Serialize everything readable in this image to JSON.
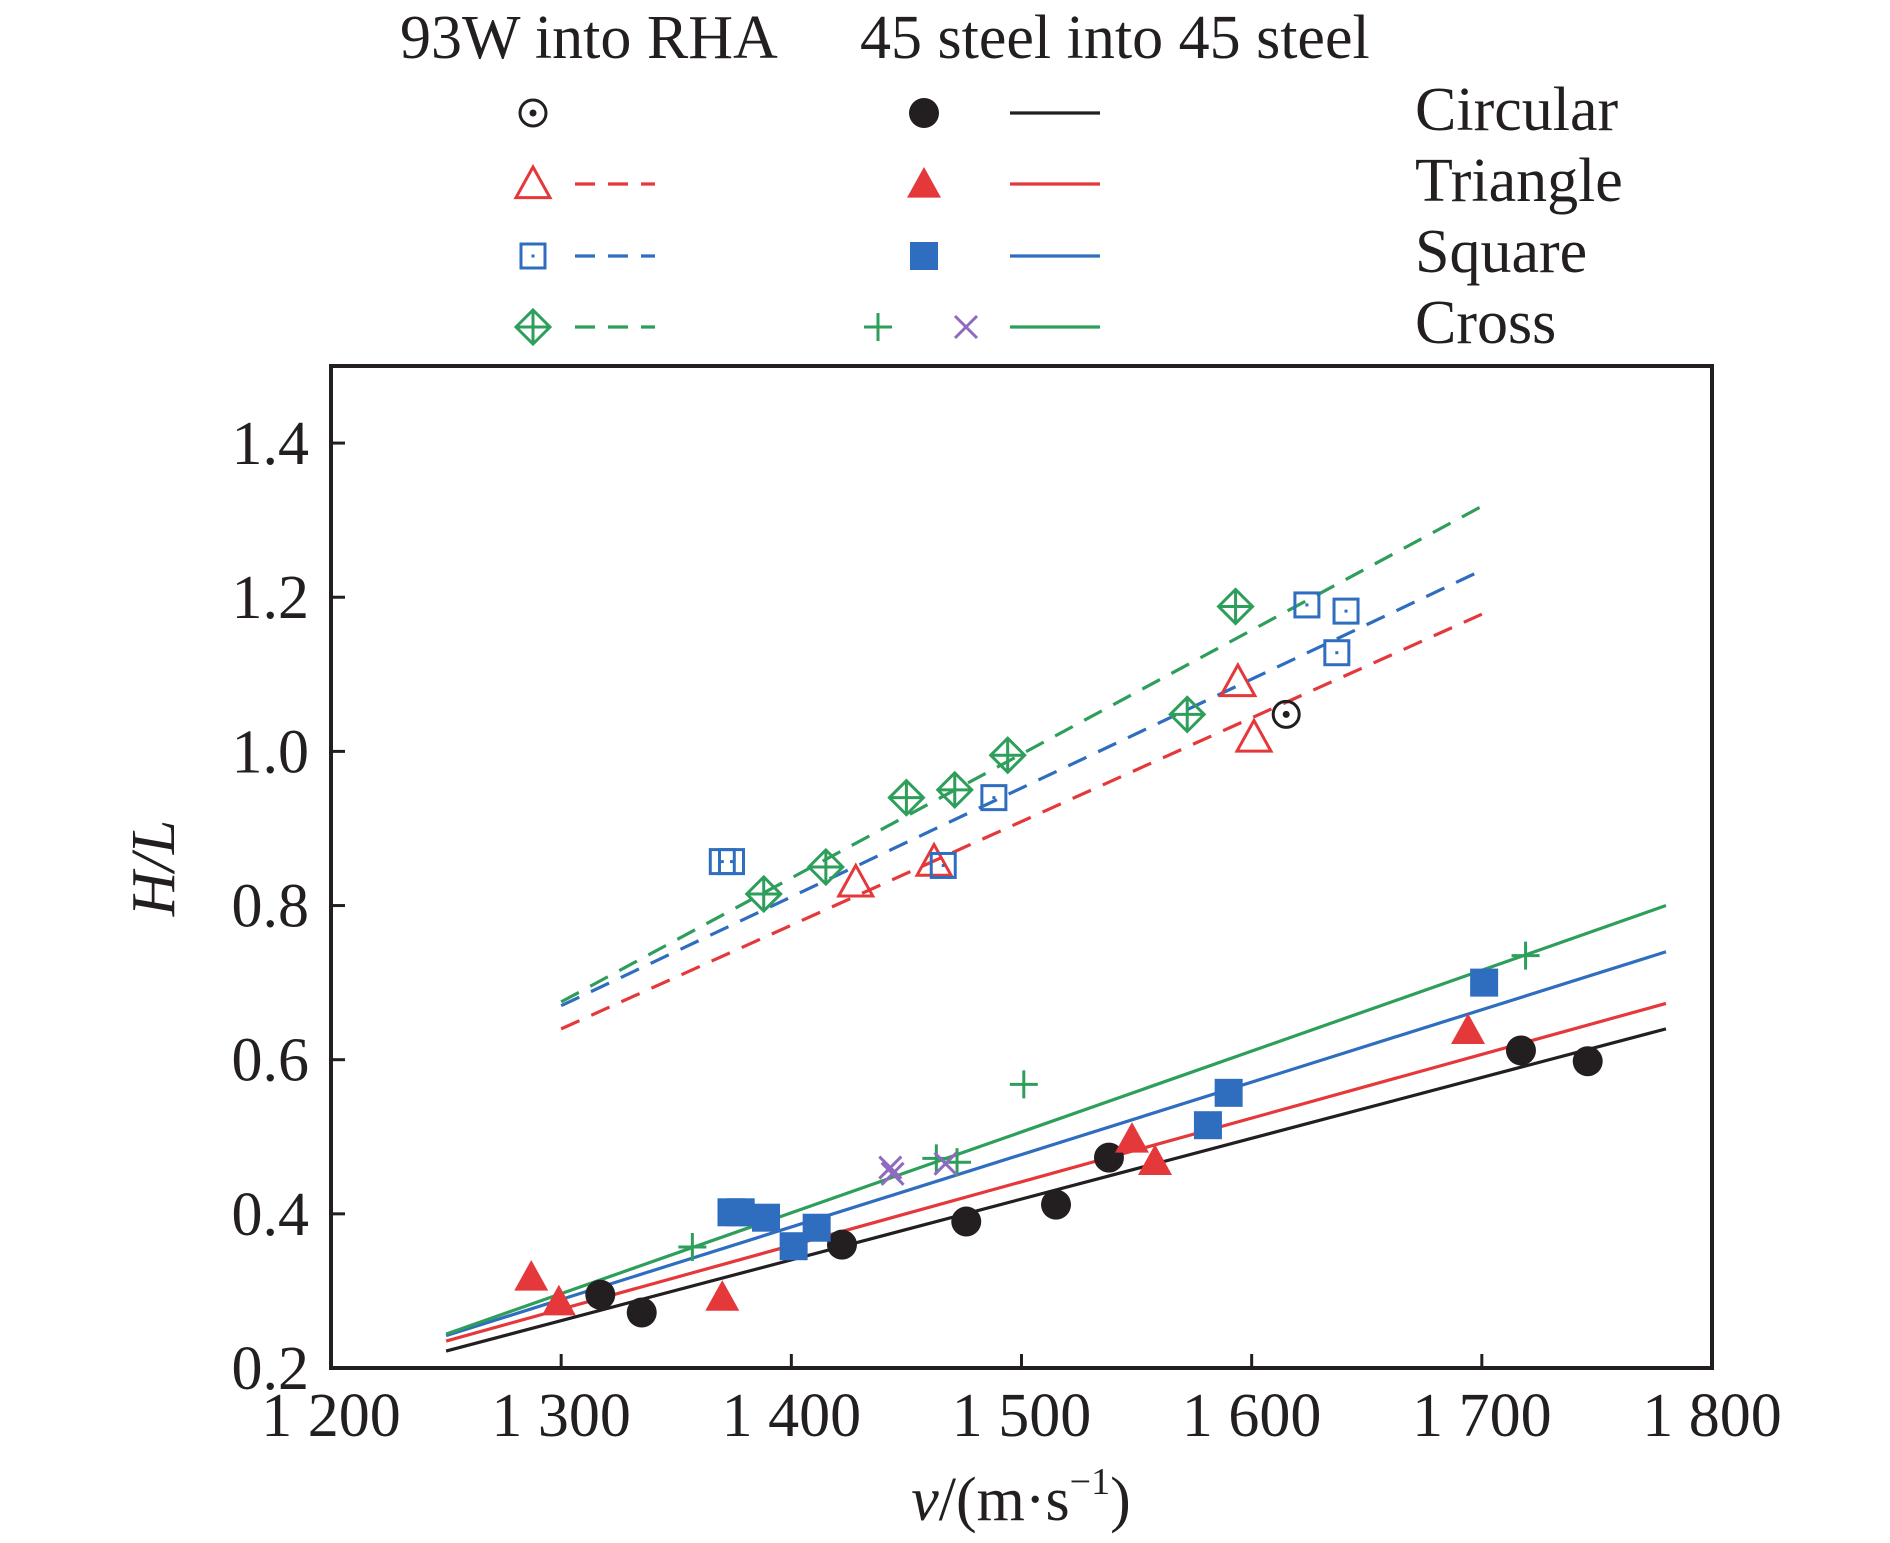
{
  "chart_data": {
    "type": "scatter",
    "xlabel": "v/(m·s",
    "xlabel_sup": "−1",
    "xlabel_close": ")",
    "ylabel": "H/L",
    "xlim": [
      1200,
      1800
    ],
    "ylim": [
      0.2,
      1.5
    ],
    "xticks": [
      1200,
      1300,
      1400,
      1500,
      1600,
      1700,
      1800
    ],
    "xtick_labels": [
      "1 200",
      "1 300",
      "1 400",
      "1 500",
      "1 600",
      "1 700",
      "1 800"
    ],
    "yticks": [
      0.2,
      0.4,
      0.6,
      0.8,
      1.0,
      1.2,
      1.4
    ],
    "ytick_labels": [
      "0.2",
      "0.4",
      "0.6",
      "0.8",
      "1.0",
      "1.2",
      "1.4"
    ],
    "grid": false,
    "legend": {
      "placement": "above plot",
      "column_headers": [
        "93W into RHA",
        "45 steel into 45 steel"
      ],
      "row_labels": [
        "Circular",
        "Triangle",
        "Square",
        "Cross"
      ]
    },
    "colors": {
      "circular": "#231f20",
      "triangle": "#e5383b",
      "square": "#2f6dbf",
      "cross": "#2e9e5b",
      "cross_x": "#8e6bbf"
    },
    "series": [
      {
        "group": "93W into RHA",
        "shape": "circular",
        "marker": "circle-dot",
        "points": [
          [
            1615,
            1.048
          ]
        ]
      },
      {
        "group": "93W into RHA",
        "shape": "triangle",
        "marker": "triangle-open",
        "points": [
          [
            1428,
            0.83
          ],
          [
            1462,
            0.857
          ],
          [
            1594,
            1.09
          ],
          [
            1601,
            1.018
          ]
        ],
        "fit": {
          "x": [
            1300,
            1700
          ],
          "y": [
            0.64,
            1.178
          ]
        }
      },
      {
        "group": "93W into RHA",
        "shape": "square",
        "marker": "square-open",
        "points": [
          [
            1370,
            0.857
          ],
          [
            1374,
            0.857
          ],
          [
            1466,
            0.852
          ],
          [
            1488,
            0.94
          ],
          [
            1624,
            1.19
          ],
          [
            1637,
            1.128
          ],
          [
            1641,
            1.182
          ]
        ],
        "fit": {
          "x": [
            1300,
            1700
          ],
          "y": [
            0.67,
            1.235
          ]
        }
      },
      {
        "group": "93W into RHA",
        "shape": "cross",
        "marker": "diamond-cross",
        "points": [
          [
            1388,
            0.815
          ],
          [
            1415,
            0.85
          ],
          [
            1450,
            0.94
          ],
          [
            1471,
            0.95
          ],
          [
            1494,
            0.995
          ],
          [
            1572,
            1.048
          ],
          [
            1593,
            1.188
          ]
        ],
        "fit": {
          "x": [
            1300,
            1700
          ],
          "y": [
            0.675,
            1.318
          ]
        }
      },
      {
        "group": "45 steel into 45 steel",
        "shape": "circular",
        "marker": "circle-filled",
        "points": [
          [
            1317,
            0.295
          ],
          [
            1335,
            0.272
          ],
          [
            1422,
            0.36
          ],
          [
            1476,
            0.39
          ],
          [
            1515,
            0.412
          ],
          [
            1538,
            0.473
          ],
          [
            1717,
            0.612
          ],
          [
            1746,
            0.598
          ]
        ],
        "fit": {
          "x": [
            1250,
            1780
          ],
          "y": [
            0.222,
            0.64
          ]
        }
      },
      {
        "group": "45 steel into 45 steel",
        "shape": "triangle",
        "marker": "triangle-filled",
        "points": [
          [
            1287,
            0.318
          ],
          [
            1299,
            0.286
          ],
          [
            1370,
            0.292
          ],
          [
            1548,
            0.497
          ],
          [
            1558,
            0.468
          ],
          [
            1694,
            0.638
          ]
        ],
        "fit": {
          "x": [
            1250,
            1780
          ],
          "y": [
            0.235,
            0.673
          ]
        }
      },
      {
        "group": "45 steel into 45 steel",
        "shape": "square",
        "marker": "square-filled",
        "points": [
          [
            1374,
            0.402
          ],
          [
            1378,
            0.402
          ],
          [
            1389,
            0.395
          ],
          [
            1401,
            0.358
          ],
          [
            1411,
            0.382
          ],
          [
            1581,
            0.515
          ],
          [
            1590,
            0.557
          ],
          [
            1701,
            0.7
          ]
        ],
        "fit": {
          "x": [
            1250,
            1780
          ],
          "y": [
            0.242,
            0.74
          ]
        }
      },
      {
        "group": "45 steel into 45 steel",
        "shape": "cross",
        "marker": "plus",
        "points": [
          [
            1357,
            0.357
          ],
          [
            1463,
            0.472
          ],
          [
            1472,
            0.467
          ],
          [
            1501,
            0.568
          ],
          [
            1719,
            0.735
          ]
        ],
        "fit": {
          "x": [
            1250,
            1780
          ],
          "y": [
            0.244,
            0.8
          ]
        }
      },
      {
        "group": "45 steel into 45 steel",
        "shape": "cross",
        "marker": "x",
        "points": [
          [
            1443,
            0.46
          ],
          [
            1444,
            0.452
          ],
          [
            1467,
            0.465
          ]
        ]
      }
    ]
  }
}
